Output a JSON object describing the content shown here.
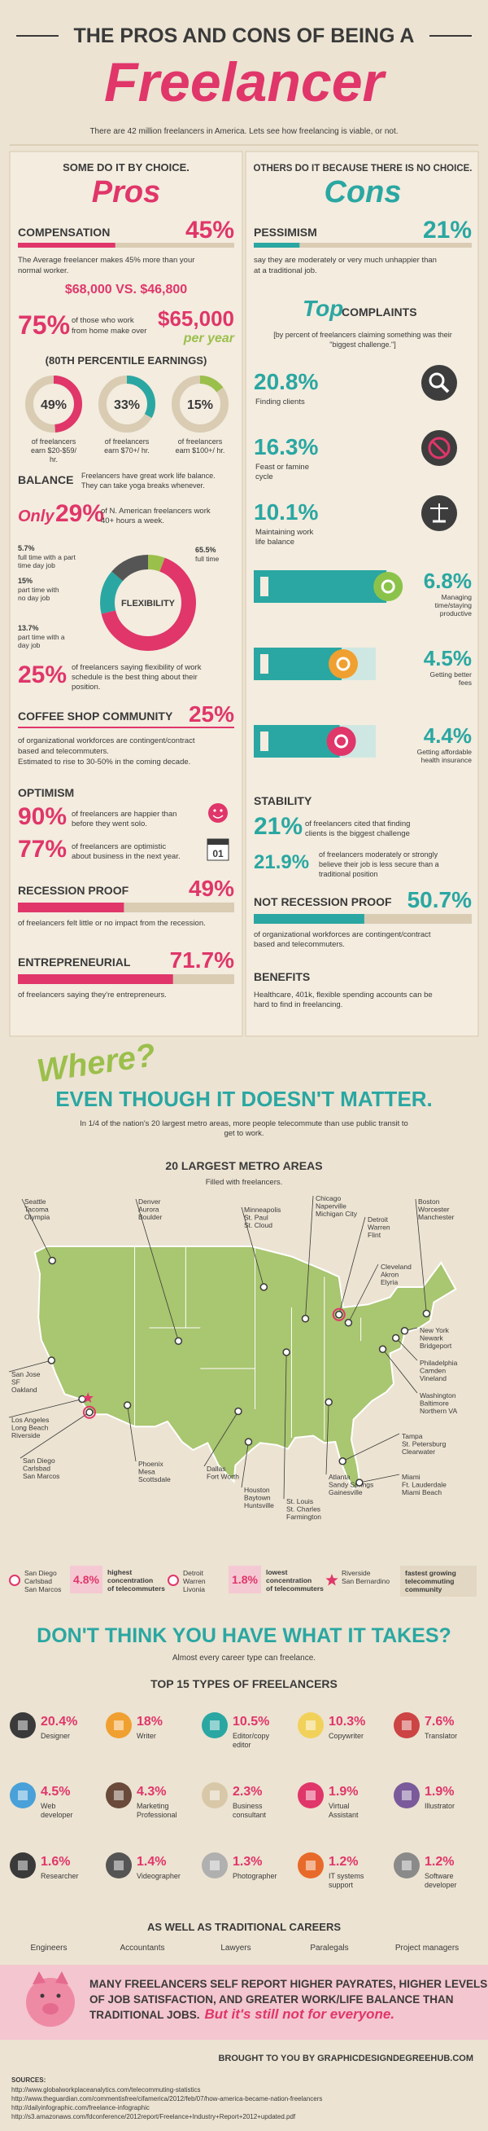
{
  "header": {
    "title": "THE PROS AND CONS OF BEING A",
    "title_big": "Freelancer",
    "subtitle": "There are 42 million freelancers in America. Lets see how freelancing is viable, or not."
  },
  "pros": {
    "intro": "SOME DO IT BY CHOICE.",
    "heading": "Pros",
    "compensation": {
      "label": "COMPENSATION",
      "value": 45,
      "value_label": "45%",
      "text": [
        "The Average freelancer makes 45% more than your",
        "normal worker."
      ],
      "compare": "$68,000 VS. $46,800"
    },
    "high_earners": {
      "value_label": "75%",
      "text": [
        "of those who work",
        "from home make over"
      ],
      "amount": "$65,000",
      "per": "per year"
    },
    "percentile": {
      "title": "(80TH PERCENTILE EARNINGS)",
      "items": [
        {
          "value": 49,
          "value_label": "49%",
          "text": [
            "of freelancers",
            "earn $20-$59/",
            "hr."
          ]
        },
        {
          "value": 33,
          "value_label": "33%",
          "text": [
            "of freelancers",
            "earn $70+/ hr."
          ]
        },
        {
          "value": 15,
          "value_label": "15%",
          "text": [
            "of freelancers",
            "earn $100+/ hr."
          ]
        }
      ]
    },
    "balance": {
      "label": "BALANCE",
      "text": [
        "Freelancers have great work life balance.",
        "They can take yoga breaks whenever."
      ],
      "only": "Only",
      "value_label": "29%",
      "text2": [
        "of N. American freelancers work",
        "40+ hours a week."
      ]
    },
    "flexibility": {
      "label": "FLEXIBILITY",
      "segments": [
        {
          "value": 5.7,
          "value_label": "5.7%",
          "text": [
            "full time with a part",
            "time day job"
          ]
        },
        {
          "value": 65.5,
          "value_label": "65.5%",
          "text": [
            "full time"
          ]
        },
        {
          "value": 15,
          "value_label": "15%",
          "text": [
            "part time with",
            "no day job"
          ]
        },
        {
          "value": 13.7,
          "value_label": "13.7%",
          "text": [
            "part time with a",
            "day job"
          ]
        }
      ],
      "stat": {
        "value_label": "25%",
        "text": [
          "of freelancers saying flexibility of work",
          "schedule is the best thing about their",
          "position."
        ]
      }
    },
    "coffee": {
      "label": "COFFEE SHOP COMMUNITY",
      "value_label": "25%",
      "text": [
        "of organizational workforces are contingent/contract",
        "based and telecommuters.",
        "Estimated to rise to 30-50% in the coming decade."
      ]
    },
    "optimism": {
      "label": "OPTIMISM",
      "items": [
        {
          "value_label": "90%",
          "text": [
            "of freelancers are happier than",
            "before they went solo."
          ]
        },
        {
          "value_label": "77%",
          "text": [
            "of freelancers are optimistic",
            "about business in the next year."
          ]
        }
      ],
      "calendar": "01"
    },
    "recession": {
      "label": "RECESSION PROOF",
      "value": 49,
      "value_label": "49%",
      "text": [
        "of freelancers felt little or no impact from the recession."
      ]
    },
    "entrepreneurial": {
      "label": "ENTREPRENEURIAL",
      "value": 71.7,
      "value_label": "71.7%",
      "text": [
        "of freelancers saying they're entrepreneurs."
      ]
    }
  },
  "cons": {
    "intro": "OTHERS DO IT BECAUSE THERE IS NO CHOICE.",
    "heading": "Cons",
    "pessimism": {
      "label": "PESSIMISM",
      "value": 21,
      "value_label": "21%",
      "text": [
        "say they are moderately or very much unhappier than",
        "at a traditional job."
      ]
    },
    "complaints": {
      "top": "Top",
      "title": "COMPLAINTS",
      "text": [
        "[by percent of freelancers claiming something was their",
        "\"biggest challenge.\"]"
      ],
      "items": [
        {
          "value_label": "20.8%",
          "text": [
            "Finding clients"
          ]
        },
        {
          "value_label": "16.3%",
          "text": [
            "Feast or famine",
            "cycle"
          ]
        },
        {
          "value_label": "10.1%",
          "text": [
            "Maintaining work",
            "life balance"
          ]
        },
        {
          "value": 6.8,
          "value_label": "6.8%",
          "text": [
            "Managing",
            "time/staying",
            "productive"
          ]
        },
        {
          "value": 4.5,
          "value_label": "4.5%",
          "text": [
            "Getting better",
            "fees"
          ]
        },
        {
          "value": 4.4,
          "value_label": "4.4%",
          "text": [
            "Getting affordable",
            "health insurance"
          ]
        }
      ]
    },
    "stability": {
      "label": "STABILITY",
      "items": [
        {
          "value_label": "21%",
          "text": [
            "of freelancers cited that finding",
            "clients is the biggest challenge"
          ]
        },
        {
          "value_label": "21.9%",
          "text": [
            "of freelancers moderately or strongly",
            "believe their job is less secure than a",
            "traditional position"
          ]
        }
      ]
    },
    "not_recession": {
      "label": "NOT RECESSION PROOF",
      "value": 50.7,
      "value_label": "50.7%",
      "text": [
        "of organizational workforces are contingent/contract",
        "based and telecommuters."
      ]
    },
    "benefits": {
      "label": "BENEFITS",
      "text": [
        "Healthcare, 401k, flexible spending accounts can be",
        "hard to find in freelancing."
      ]
    }
  },
  "where": {
    "script": "Where?",
    "title": "EVEN THOUGH IT DOESN'T MATTER.",
    "text": [
      "In 1/4 of the nation's 20 largest metro areas, more people telecommute than use public transit to",
      "get to work."
    ]
  },
  "map": {
    "title": "20 LARGEST METRO AREAS",
    "subtitle": "Filled with freelancers.",
    "metros": [
      {
        "lines": [
          "Seattle",
          "Tacoma",
          "Olympia"
        ]
      },
      {
        "lines": [
          "Denver",
          "Aurora",
          "Boulder"
        ]
      },
      {
        "lines": [
          "Chicago",
          "Naperville",
          "Michigan City"
        ]
      },
      {
        "lines": [
          "Minneapolis",
          "St. Paul",
          "St. Cloud"
        ]
      },
      {
        "lines": [
          "Detroit",
          "Warren",
          "Flint"
        ]
      },
      {
        "lines": [
          "Boston",
          "Worcester",
          "Manchester"
        ]
      },
      {
        "lines": [
          "Cleveland",
          "Akron",
          "Elyria"
        ]
      },
      {
        "lines": [
          "New York",
          "Newark",
          "Bridgeport"
        ]
      },
      {
        "lines": [
          "Philadelphia",
          "Camden",
          "Vineland"
        ]
      },
      {
        "lines": [
          "Washington",
          "Baltimore",
          "Northern VA"
        ]
      },
      {
        "lines": [
          "San Jose",
          "SF",
          "Oakland"
        ]
      },
      {
        "lines": [
          "Los Angeles",
          "Long Beach",
          "Riverside"
        ]
      },
      {
        "lines": [
          "San Diego",
          "Carlsbad",
          "San Marcos"
        ]
      },
      {
        "lines": [
          "Phoenix",
          "Mesa",
          "Scottsdale"
        ]
      },
      {
        "lines": [
          "Dallas",
          "Fort Worth"
        ]
      },
      {
        "lines": [
          "Houston",
          "Baytown",
          "Huntsville"
        ]
      },
      {
        "lines": [
          "St. Louis",
          "St. Charles",
          "Farmington"
        ]
      },
      {
        "lines": [
          "Atlanta",
          "Sandy Springs",
          "Gainesville"
        ]
      },
      {
        "lines": [
          "Tampa",
          "St. Petersburg",
          "Clearwater"
        ]
      },
      {
        "lines": [
          "Miami",
          "Ft. Lauderdale",
          "Miami Beach"
        ]
      }
    ],
    "legend": [
      {
        "lines": [
          "San Diego",
          "Carlsbad",
          "San Marcos"
        ],
        "value_label": "4.8%",
        "text": [
          "highest",
          "concentration",
          "of telecommuters"
        ]
      },
      {
        "lines": [
          "Detroit",
          "Warren",
          "Livonia"
        ],
        "value_label": "1.8%",
        "text": [
          "lowest",
          "concentration",
          "of telecommuters"
        ]
      },
      {
        "lines": [
          "Riverside",
          "San Bernardino"
        ],
        "text": [
          "fastest growing",
          "telecommuting",
          "community"
        ]
      }
    ]
  },
  "careers": {
    "title": "DON'T THINK YOU HAVE WHAT IT TAKES?",
    "subtitle": "Almost every career type can freelance.",
    "types_title": "TOP 15 TYPES OF FREELANCERS",
    "types": [
      {
        "value_label": "20.4%",
        "text": [
          "Designer"
        ]
      },
      {
        "value_label": "18%",
        "text": [
          "Writer"
        ]
      },
      {
        "value_label": "10.5%",
        "text": [
          "Editor/copy",
          "editor"
        ]
      },
      {
        "value_label": "10.3%",
        "text": [
          "Copywriter"
        ]
      },
      {
        "value_label": "7.6%",
        "text": [
          "Translator"
        ]
      },
      {
        "value_label": "4.5%",
        "text": [
          "Web",
          "developer"
        ]
      },
      {
        "value_label": "4.3%",
        "text": [
          "Marketing",
          "Professional"
        ]
      },
      {
        "value_label": "2.3%",
        "text": [
          "Business",
          "consultant"
        ]
      },
      {
        "value_label": "1.9%",
        "text": [
          "Virtual",
          "Assistant"
        ]
      },
      {
        "value_label": "1.9%",
        "text": [
          "Illustrator"
        ]
      },
      {
        "value_label": "1.6%",
        "text": [
          "Researcher"
        ]
      },
      {
        "value_label": "1.4%",
        "text": [
          "Videographer"
        ]
      },
      {
        "value_label": "1.3%",
        "text": [
          "Photographer"
        ]
      },
      {
        "value_label": "1.2%",
        "text": [
          "IT systems",
          "support"
        ]
      },
      {
        "value_label": "1.2%",
        "text": [
          "Software",
          "developer"
        ]
      }
    ],
    "traditional_title": "AS WELL AS TRADITIONAL CAREERS",
    "traditional": [
      "Engineers",
      "Accountants",
      "Lawyers",
      "Paralegals",
      "Project managers"
    ]
  },
  "footer": {
    "banner": [
      "MANY FREELANCERS SELF REPORT HIGHER PAYRATES, HIGHER LEVELS",
      "OF JOB SATISFACTION, AND GREATER WORK/LIFE BALANCE THAN",
      "TRADITIONAL JOBS."
    ],
    "banner_script": "But it's still not for everyone.",
    "credit": "BROUGHT TO YOU BY GRAPHICDESIGNDEGREEHUB.COM",
    "sources_title": "SOURCES:",
    "sources": [
      "http://www.globalworkplaceanalytics.com/telecommuting-statistics",
      "http://www.theguardian.com/commentisfree/cifamerica/2012/feb/07/how-america-became-nation-freelancers",
      "http://dailyinfographic.com/freelance-infographic",
      "http://s3.amazonaws.com/fdconference/2012report/Freelance+Industry+Report+2012+updated.pdf"
    ]
  }
}
